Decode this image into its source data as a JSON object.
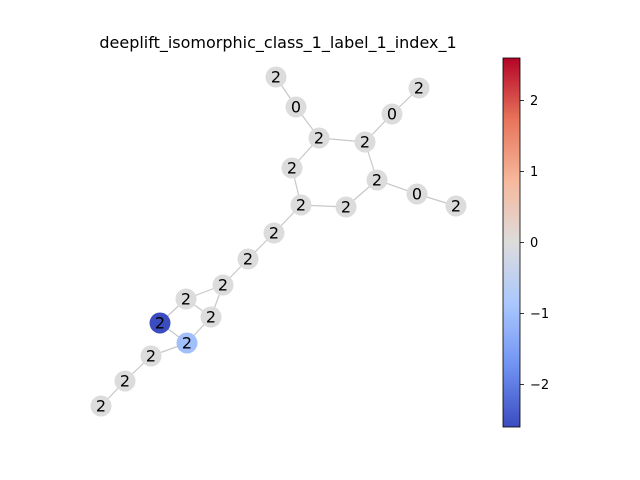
{
  "title": "deeplift_isomorphic_class_1_label_1_index_1",
  "graph": {
    "nodes": [
      {
        "id": 0,
        "label": "2",
        "value": 0
      },
      {
        "id": 1,
        "label": "0",
        "value": 0
      },
      {
        "id": 2,
        "label": "2",
        "value": 0
      },
      {
        "id": 3,
        "label": "2",
        "value": 0
      },
      {
        "id": 4,
        "label": "0",
        "value": 0
      },
      {
        "id": 5,
        "label": "2",
        "value": 0
      },
      {
        "id": 6,
        "label": "2",
        "value": 0
      },
      {
        "id": 7,
        "label": "2",
        "value": 0
      },
      {
        "id": 8,
        "label": "0",
        "value": 0
      },
      {
        "id": 9,
        "label": "2",
        "value": 0
      },
      {
        "id": 10,
        "label": "2",
        "value": 0
      },
      {
        "id": 11,
        "label": "2",
        "value": 0
      },
      {
        "id": 12,
        "label": "2",
        "value": 0
      },
      {
        "id": 13,
        "label": "2",
        "value": 0
      },
      {
        "id": 14,
        "label": "2",
        "value": 0
      },
      {
        "id": 15,
        "label": "2",
        "value": 0
      },
      {
        "id": 16,
        "label": "2",
        "value": 0
      },
      {
        "id": 17,
        "label": "2",
        "value": -2.6
      },
      {
        "id": 18,
        "label": "2",
        "value": -1.0
      },
      {
        "id": 19,
        "label": "2",
        "value": 0
      },
      {
        "id": 20,
        "label": "2",
        "value": 0
      }
    ],
    "edges": [
      [
        0,
        1
      ],
      [
        1,
        2
      ],
      [
        2,
        3
      ],
      [
        3,
        4
      ],
      [
        4,
        5
      ],
      [
        2,
        6
      ],
      [
        3,
        7
      ],
      [
        7,
        8
      ],
      [
        8,
        9
      ],
      [
        6,
        10
      ],
      [
        10,
        11
      ],
      [
        11,
        7
      ],
      [
        10,
        12
      ],
      [
        12,
        13
      ],
      [
        13,
        14
      ],
      [
        14,
        15
      ],
      [
        15,
        16
      ],
      [
        15,
        17
      ],
      [
        14,
        16
      ],
      [
        16,
        18
      ],
      [
        17,
        18
      ],
      [
        18,
        19
      ],
      [
        19,
        20
      ]
    ]
  },
  "colorbar": {
    "min": -2.6,
    "max": 2.6,
    "ticks": [
      "2",
      "1",
      "0",
      "−1",
      "−2"
    ],
    "tick_values": [
      2,
      1,
      0,
      -1,
      -2
    ],
    "colormap": "coolwarm",
    "colors": [
      "#3b4cc0",
      "#7093f3",
      "#aac7fd",
      "#dddcdc",
      "#f7b89c",
      "#e7745b",
      "#b40426"
    ]
  }
}
